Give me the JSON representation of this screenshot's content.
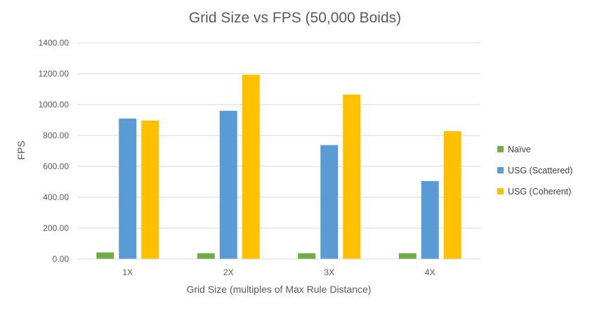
{
  "chart_data": {
    "type": "bar",
    "title": "Grid Size vs FPS (50,000 Boids)",
    "xlabel": "Grid Size (multiples of Max Rule Distance)",
    "ylabel": "FPS",
    "ylim": [
      0,
      1400
    ],
    "yticks": [
      "0.00",
      "200.00",
      "400.00",
      "600.00",
      "800.00",
      "1000.00",
      "1200.00",
      "1400.00"
    ],
    "categories": [
      "1X",
      "2X",
      "3X",
      "4X"
    ],
    "series": [
      {
        "name": "Naïve",
        "color": "#70ad47",
        "values": [
          43,
          38,
          38,
          38
        ]
      },
      {
        "name": "USG (Scattered)",
        "color": "#5b9bd5",
        "values": [
          910,
          960,
          738,
          505
        ]
      },
      {
        "name": "USG (Coherent)",
        "color": "#ffc000",
        "values": [
          897,
          1193,
          1065,
          828
        ]
      }
    ],
    "grid": true,
    "legend": "right"
  }
}
